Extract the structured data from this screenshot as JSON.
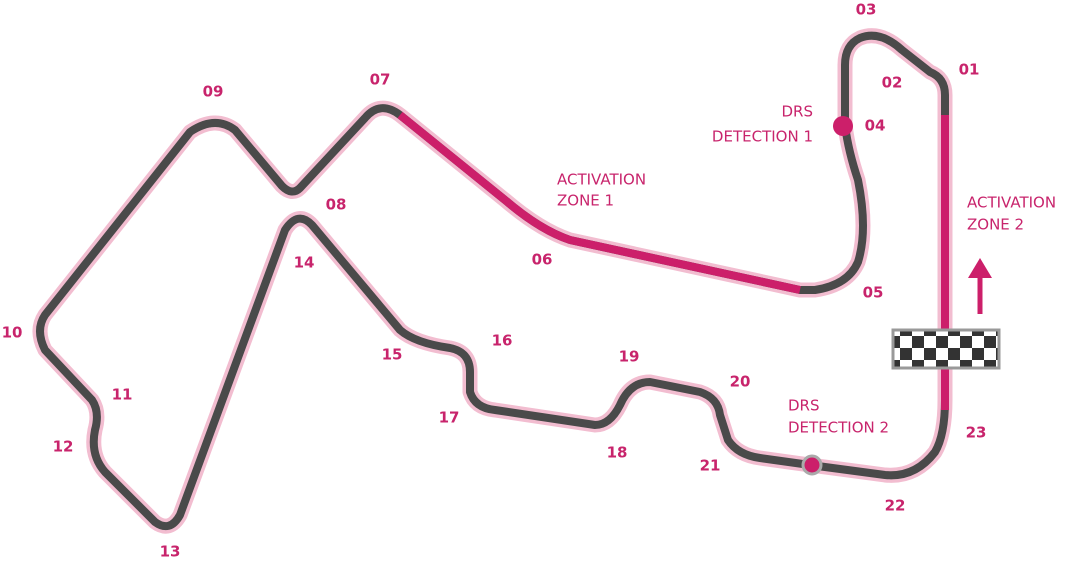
{
  "turns": [
    "01",
    "02",
    "03",
    "04",
    "05",
    "06",
    "07",
    "08",
    "09",
    "10",
    "11",
    "12",
    "13",
    "14",
    "15",
    "16",
    "17",
    "18",
    "19",
    "20",
    "21",
    "22",
    "23"
  ],
  "drs_detection_1": {
    "line1": "DRS",
    "line2": "DETECTION 1"
  },
  "activation_zone_1": {
    "line1": "ACTIVATION",
    "line2": "ZONE 1"
  },
  "activation_zone_2": {
    "line1": "ACTIVATION",
    "line2": "ZONE 2"
  },
  "drs_detection_2": {
    "line1": "DRS",
    "line2": "DETECTION 2"
  }
}
